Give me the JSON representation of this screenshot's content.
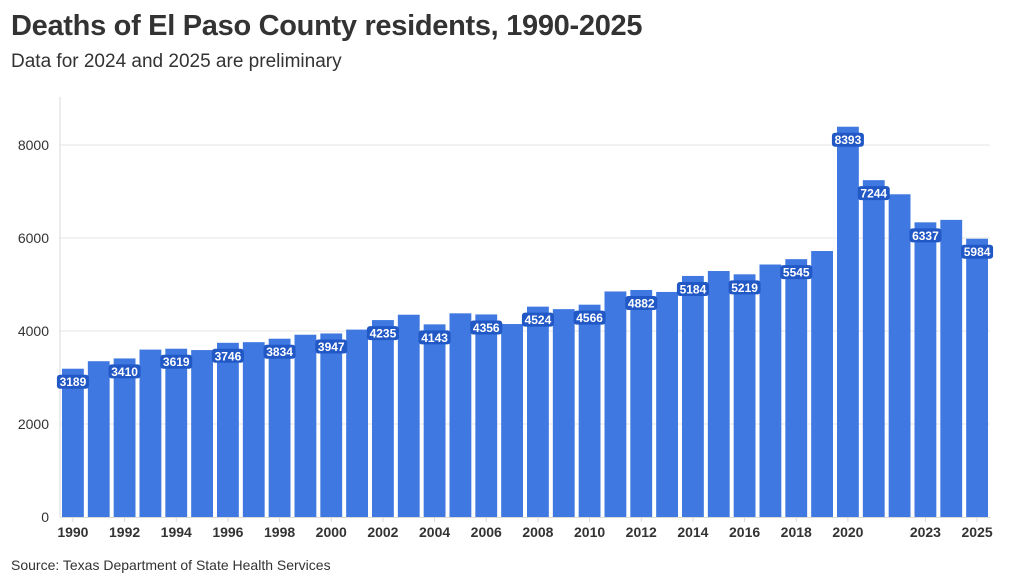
{
  "header": {
    "title": "Deaths of El Paso County residents, 1990-2025",
    "subtitle": "Data for 2024 and 2025 are preliminary"
  },
  "footer": {
    "source": "Source: Texas Department of State Health Services"
  },
  "colors": {
    "bar": "#3f78e0",
    "label_bg": "#2158c6",
    "grid": "#e6e6e6",
    "axis": "#d9d9d9"
  },
  "chart_data": {
    "type": "bar",
    "title": "Deaths of El Paso County residents, 1990-2025",
    "subtitle": "Data for 2024 and 2025 are preliminary",
    "xlabel": "",
    "ylabel": "",
    "ylim": [
      0,
      9000
    ],
    "yticks": [
      0,
      2000,
      4000,
      6000,
      8000
    ],
    "grid": true,
    "categories": [
      "1990",
      "1991",
      "1992",
      "1993",
      "1994",
      "1995",
      "1996",
      "1997",
      "1998",
      "1999",
      "2000",
      "2001",
      "2002",
      "2003",
      "2004",
      "2005",
      "2006",
      "2007",
      "2008",
      "2009",
      "2010",
      "2011",
      "2012",
      "2013",
      "2014",
      "2015",
      "2016",
      "2017",
      "2018",
      "2019",
      "2020",
      "2021",
      "2022",
      "2023",
      "2024",
      "2025"
    ],
    "values": [
      3189,
      3350,
      3410,
      3600,
      3619,
      3590,
      3746,
      3760,
      3834,
      3920,
      3947,
      4030,
      4235,
      4350,
      4143,
      4380,
      4356,
      4150,
      4524,
      4470,
      4566,
      4850,
      4882,
      4840,
      5184,
      5290,
      5219,
      5430,
      5545,
      5720,
      8393,
      7244,
      6940,
      6337,
      6390,
      5984
    ],
    "x_tick_labels": [
      "1990",
      "1992",
      "1994",
      "1996",
      "1998",
      "2000",
      "2002",
      "2004",
      "2006",
      "2008",
      "2010",
      "2012",
      "2014",
      "2016",
      "2018",
      "2020",
      "2023",
      "2025"
    ],
    "data_labels": [
      {
        "category": "1990",
        "text": "3189"
      },
      {
        "category": "1992",
        "text": "3410"
      },
      {
        "category": "1994",
        "text": "3619"
      },
      {
        "category": "1996",
        "text": "3746"
      },
      {
        "category": "1998",
        "text": "3834"
      },
      {
        "category": "2000",
        "text": "3947"
      },
      {
        "category": "2002",
        "text": "4235"
      },
      {
        "category": "2004",
        "text": "4143"
      },
      {
        "category": "2006",
        "text": "4356"
      },
      {
        "category": "2008",
        "text": "4524"
      },
      {
        "category": "2010",
        "text": "4566"
      },
      {
        "category": "2012",
        "text": "4882"
      },
      {
        "category": "2014",
        "text": "5184"
      },
      {
        "category": "2016",
        "text": "5219"
      },
      {
        "category": "2018",
        "text": "5545"
      },
      {
        "category": "2020",
        "text": "8393"
      },
      {
        "category": "2021",
        "text": "7244"
      },
      {
        "category": "2023",
        "text": "6337"
      },
      {
        "category": "2025",
        "text": "5984"
      }
    ]
  }
}
